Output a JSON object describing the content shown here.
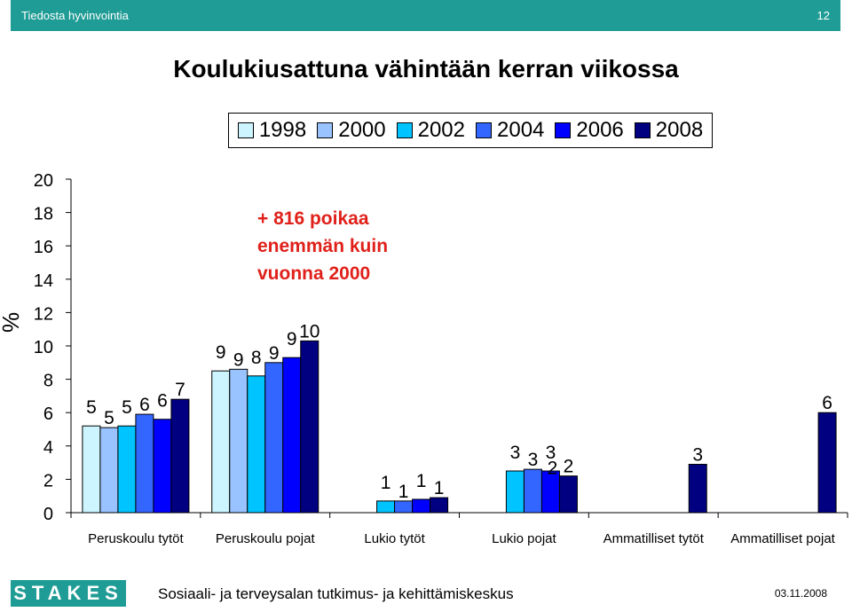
{
  "header": {
    "left": "Tiedosta hyvinvointia",
    "right": "12"
  },
  "annotation": [
    "+ 816 poikaa",
    "enemmän kuin",
    "vuonna 2000"
  ],
  "footer": {
    "logo": "STAKES",
    "text": "Sosiaali- ja terveysalan tutkimus- ja kehittämiskeskus",
    "date": "03.11.2008"
  },
  "chart_data": {
    "type": "bar",
    "title": "Koulukiusattuna vähintään kerran viikossa",
    "ylabel": "%",
    "xlabel": "",
    "ylim": [
      0,
      20
    ],
    "yticks": [
      0,
      2,
      4,
      6,
      8,
      10,
      12,
      14,
      16,
      18,
      20
    ],
    "grid": false,
    "legend_position": "top",
    "categories": [
      "Peruskoulu tytöt",
      "Peruskoulu pojat",
      "Lukio tytöt",
      "Lukio pojat",
      "Ammatilliset tytöt",
      "Ammatilliset pojat"
    ],
    "series": [
      {
        "name": "1998",
        "color": "#ccf5ff",
        "values": [
          5.2,
          8.5,
          null,
          null,
          null,
          null
        ],
        "labels": [
          "5",
          "9",
          "",
          "",
          "",
          ""
        ]
      },
      {
        "name": "2000",
        "color": "#99c3ff",
        "values": [
          5.1,
          8.6,
          null,
          null,
          null,
          null
        ],
        "labels": [
          "5",
          "9",
          "",
          "",
          "",
          ""
        ]
      },
      {
        "name": "2002",
        "color": "#00c4ff",
        "values": [
          5.2,
          8.2,
          0.7,
          2.5,
          null,
          null
        ],
        "labels": [
          "5",
          "8",
          "1",
          "3",
          "",
          ""
        ]
      },
      {
        "name": "2004",
        "color": "#3366ff",
        "values": [
          5.9,
          9.0,
          0.7,
          2.6,
          null,
          null
        ],
        "labels": [
          "6",
          "9",
          "1",
          "3",
          "",
          ""
        ]
      },
      {
        "name": "2006",
        "color": "#0000ff",
        "values": [
          5.6,
          9.3,
          0.8,
          2.5,
          null,
          null
        ],
        "labels": [
          "6",
          "9",
          "1",
          "3",
          "",
          ""
        ]
      },
      {
        "name": "2008",
        "color": "#000080",
        "values": [
          6.8,
          10.3,
          0.9,
          2.2,
          2.9,
          6.0
        ],
        "labels": [
          "7",
          "10",
          "1",
          "2",
          "3",
          "6"
        ]
      }
    ],
    "extra_label": {
      "category": "Lukio pojat",
      "text": "2",
      "value": 2.0
    }
  }
}
